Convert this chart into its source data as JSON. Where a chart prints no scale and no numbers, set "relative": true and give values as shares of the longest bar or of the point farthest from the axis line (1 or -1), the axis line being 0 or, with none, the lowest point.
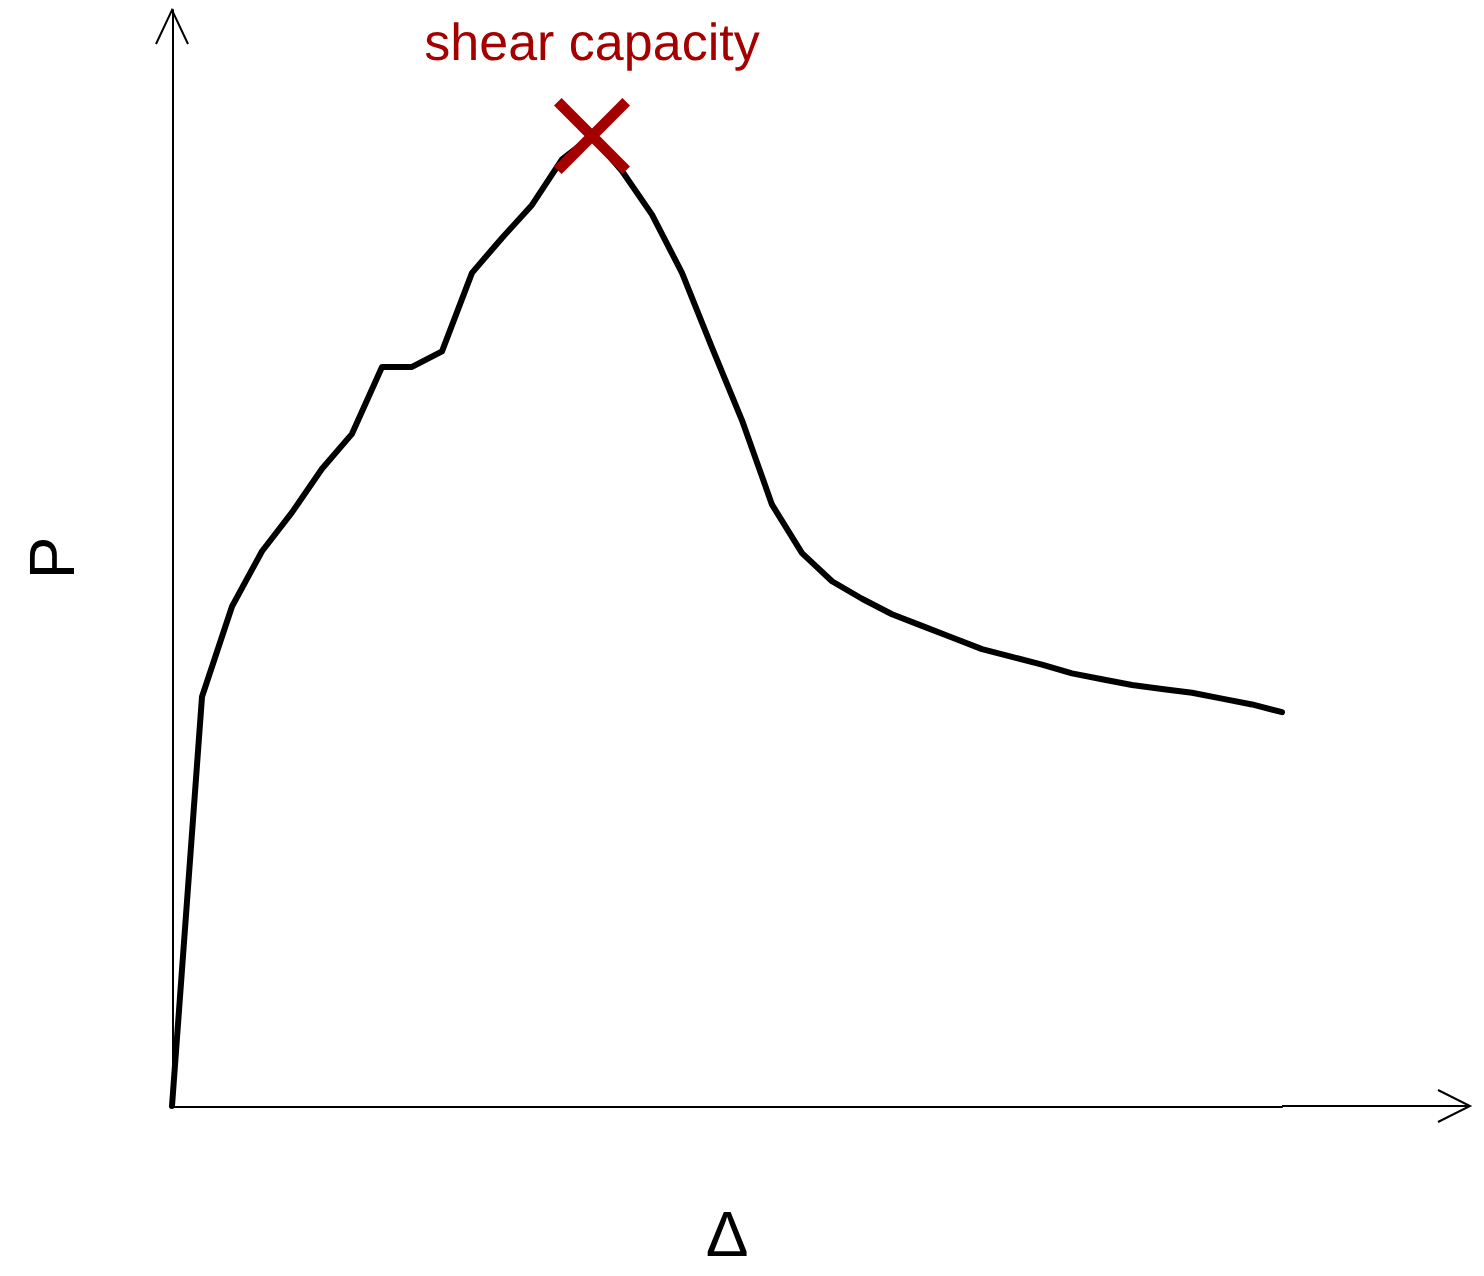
{
  "chart_data": {
    "type": "line",
    "relative": true,
    "xlabel": "Δ",
    "ylabel": "P",
    "annotations": [
      "shear capacity"
    ],
    "categories": [
      null,
      null,
      null,
      null,
      null,
      null,
      null,
      null,
      null,
      null,
      null,
      null,
      null,
      null,
      null,
      null,
      null,
      null,
      null,
      null,
      null,
      null,
      null,
      null,
      null,
      null,
      null,
      null,
      null,
      null,
      null,
      null,
      null,
      null,
      null,
      null,
      null,
      null
    ],
    "series": [
      {
        "color": "#000000",
        "values": [
          0,
          0.422,
          0.515,
          0.572,
          0.612,
          0.657,
          0.693,
          0.762,
          0.762,
          0.778,
          0.859,
          0.895,
          0.929,
          0.976,
          1,
          0.964,
          0.919,
          0.859,
          0.782,
          0.707,
          0.62,
          0.57,
          0.541,
          0.523,
          0.507,
          0.495,
          0.483,
          0.471,
          0.463,
          0.455,
          0.446,
          0.44,
          0.434,
          0.43,
          0.426,
          0.42,
          0.414,
          0.406
        ]
      }
    ]
  }
}
